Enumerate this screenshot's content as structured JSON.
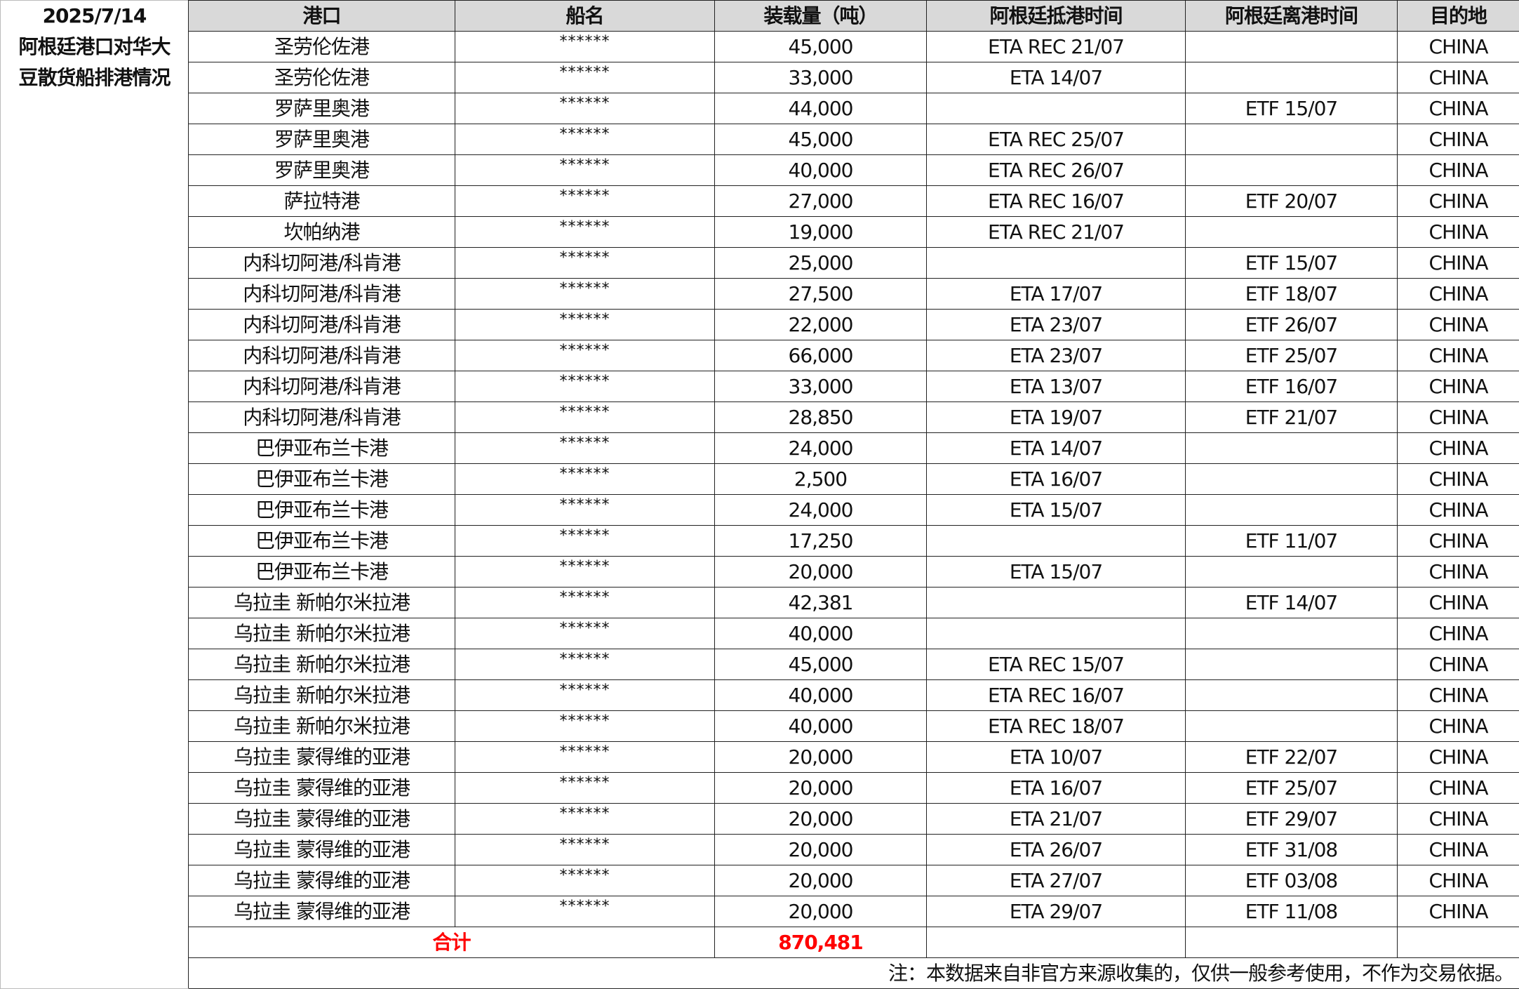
{
  "title": {
    "date": "2025/7/14",
    "line1": "阿根廷港口对华大",
    "line2": "豆散货船排港情况"
  },
  "headers": [
    "港口",
    "船名",
    "装载量（吨）",
    "阿根廷抵港时间",
    "阿根廷离港时间",
    "目的地"
  ],
  "rows": [
    [
      "圣劳伦佐港",
      "******",
      "45,000",
      "ETA REC 21/07",
      "",
      "CHINA"
    ],
    [
      "圣劳伦佐港",
      "******",
      "33,000",
      "ETA 14/07",
      "",
      "CHINA"
    ],
    [
      "罗萨里奥港",
      "******",
      "44,000",
      "",
      "ETF 15/07",
      "CHINA"
    ],
    [
      "罗萨里奥港",
      "******",
      "45,000",
      "ETA REC 25/07",
      "",
      "CHINA"
    ],
    [
      "罗萨里奥港",
      "******",
      "40,000",
      "ETA REC 26/07",
      "",
      "CHINA"
    ],
    [
      "萨拉特港",
      "******",
      "27,000",
      "ETA REC 16/07",
      "ETF 20/07",
      "CHINA"
    ],
    [
      "坎帕纳港",
      "******",
      "19,000",
      "ETA REC 21/07",
      "",
      "CHINA"
    ],
    [
      "内科切阿港/科肯港",
      "******",
      "25,000",
      "",
      "ETF 15/07",
      "CHINA"
    ],
    [
      "内科切阿港/科肯港",
      "******",
      "27,500",
      "ETA 17/07",
      "ETF 18/07",
      "CHINA"
    ],
    [
      "内科切阿港/科肯港",
      "******",
      "22,000",
      "ETA 23/07",
      "ETF 26/07",
      "CHINA"
    ],
    [
      "内科切阿港/科肯港",
      "******",
      "66,000",
      "ETA 23/07",
      "ETF 25/07",
      "CHINA"
    ],
    [
      "内科切阿港/科肯港",
      "******",
      "33,000",
      "ETA 13/07",
      "ETF 16/07",
      "CHINA"
    ],
    [
      "内科切阿港/科肯港",
      "******",
      "28,850",
      "ETA 19/07",
      "ETF 21/07",
      "CHINA"
    ],
    [
      "巴伊亚布兰卡港",
      "******",
      "24,000",
      "ETA 14/07",
      "",
      "CHINA"
    ],
    [
      "巴伊亚布兰卡港",
      "******",
      "2,500",
      "ETA 16/07",
      "",
      "CHINA"
    ],
    [
      "巴伊亚布兰卡港",
      "******",
      "24,000",
      "ETA 15/07",
      "",
      "CHINA"
    ],
    [
      "巴伊亚布兰卡港",
      "******",
      "17,250",
      "",
      "ETF 11/07",
      "CHINA"
    ],
    [
      "巴伊亚布兰卡港",
      "******",
      "20,000",
      "ETA 15/07",
      "",
      "CHINA"
    ],
    [
      "乌拉圭 新帕尔米拉港",
      "******",
      "42,381",
      "",
      "ETF 14/07",
      "CHINA"
    ],
    [
      "乌拉圭 新帕尔米拉港",
      "******",
      "40,000",
      "",
      "",
      "CHINA"
    ],
    [
      "乌拉圭 新帕尔米拉港",
      "******",
      "45,000",
      "ETA REC 15/07",
      "",
      "CHINA"
    ],
    [
      "乌拉圭 新帕尔米拉港",
      "******",
      "40,000",
      "ETA REC 16/07",
      "",
      "CHINA"
    ],
    [
      "乌拉圭 新帕尔米拉港",
      "******",
      "40,000",
      "ETA REC 18/07",
      "",
      "CHINA"
    ],
    [
      "乌拉圭 蒙得维的亚港",
      "******",
      "20,000",
      "ETA 10/07",
      "ETF 22/07",
      "CHINA"
    ],
    [
      "乌拉圭 蒙得维的亚港",
      "******",
      "20,000",
      "ETA 16/07",
      "ETF 25/07",
      "CHINA"
    ],
    [
      "乌拉圭 蒙得维的亚港",
      "******",
      "20,000",
      "ETA 21/07",
      "ETF 29/07",
      "CHINA"
    ],
    [
      "乌拉圭 蒙得维的亚港",
      "******",
      "20,000",
      "ETA 26/07",
      "ETF 31/08",
      "CHINA"
    ],
    [
      "乌拉圭 蒙得维的亚港",
      "******",
      "20,000",
      "ETA 27/07",
      "ETF 03/08",
      "CHINA"
    ],
    [
      "乌拉圭 蒙得维的亚港",
      "******",
      "20,000",
      "ETA 29/07",
      "ETF 11/08",
      "CHINA"
    ]
  ],
  "total": {
    "label": "合计",
    "value": "870,481"
  },
  "note": "注：本数据来自非官方来源收集的，仅供一般参考使用，不作为交易依据。",
  "colors": {
    "header_bg": "#d9d9d9",
    "total_text": "#ff0000"
  }
}
